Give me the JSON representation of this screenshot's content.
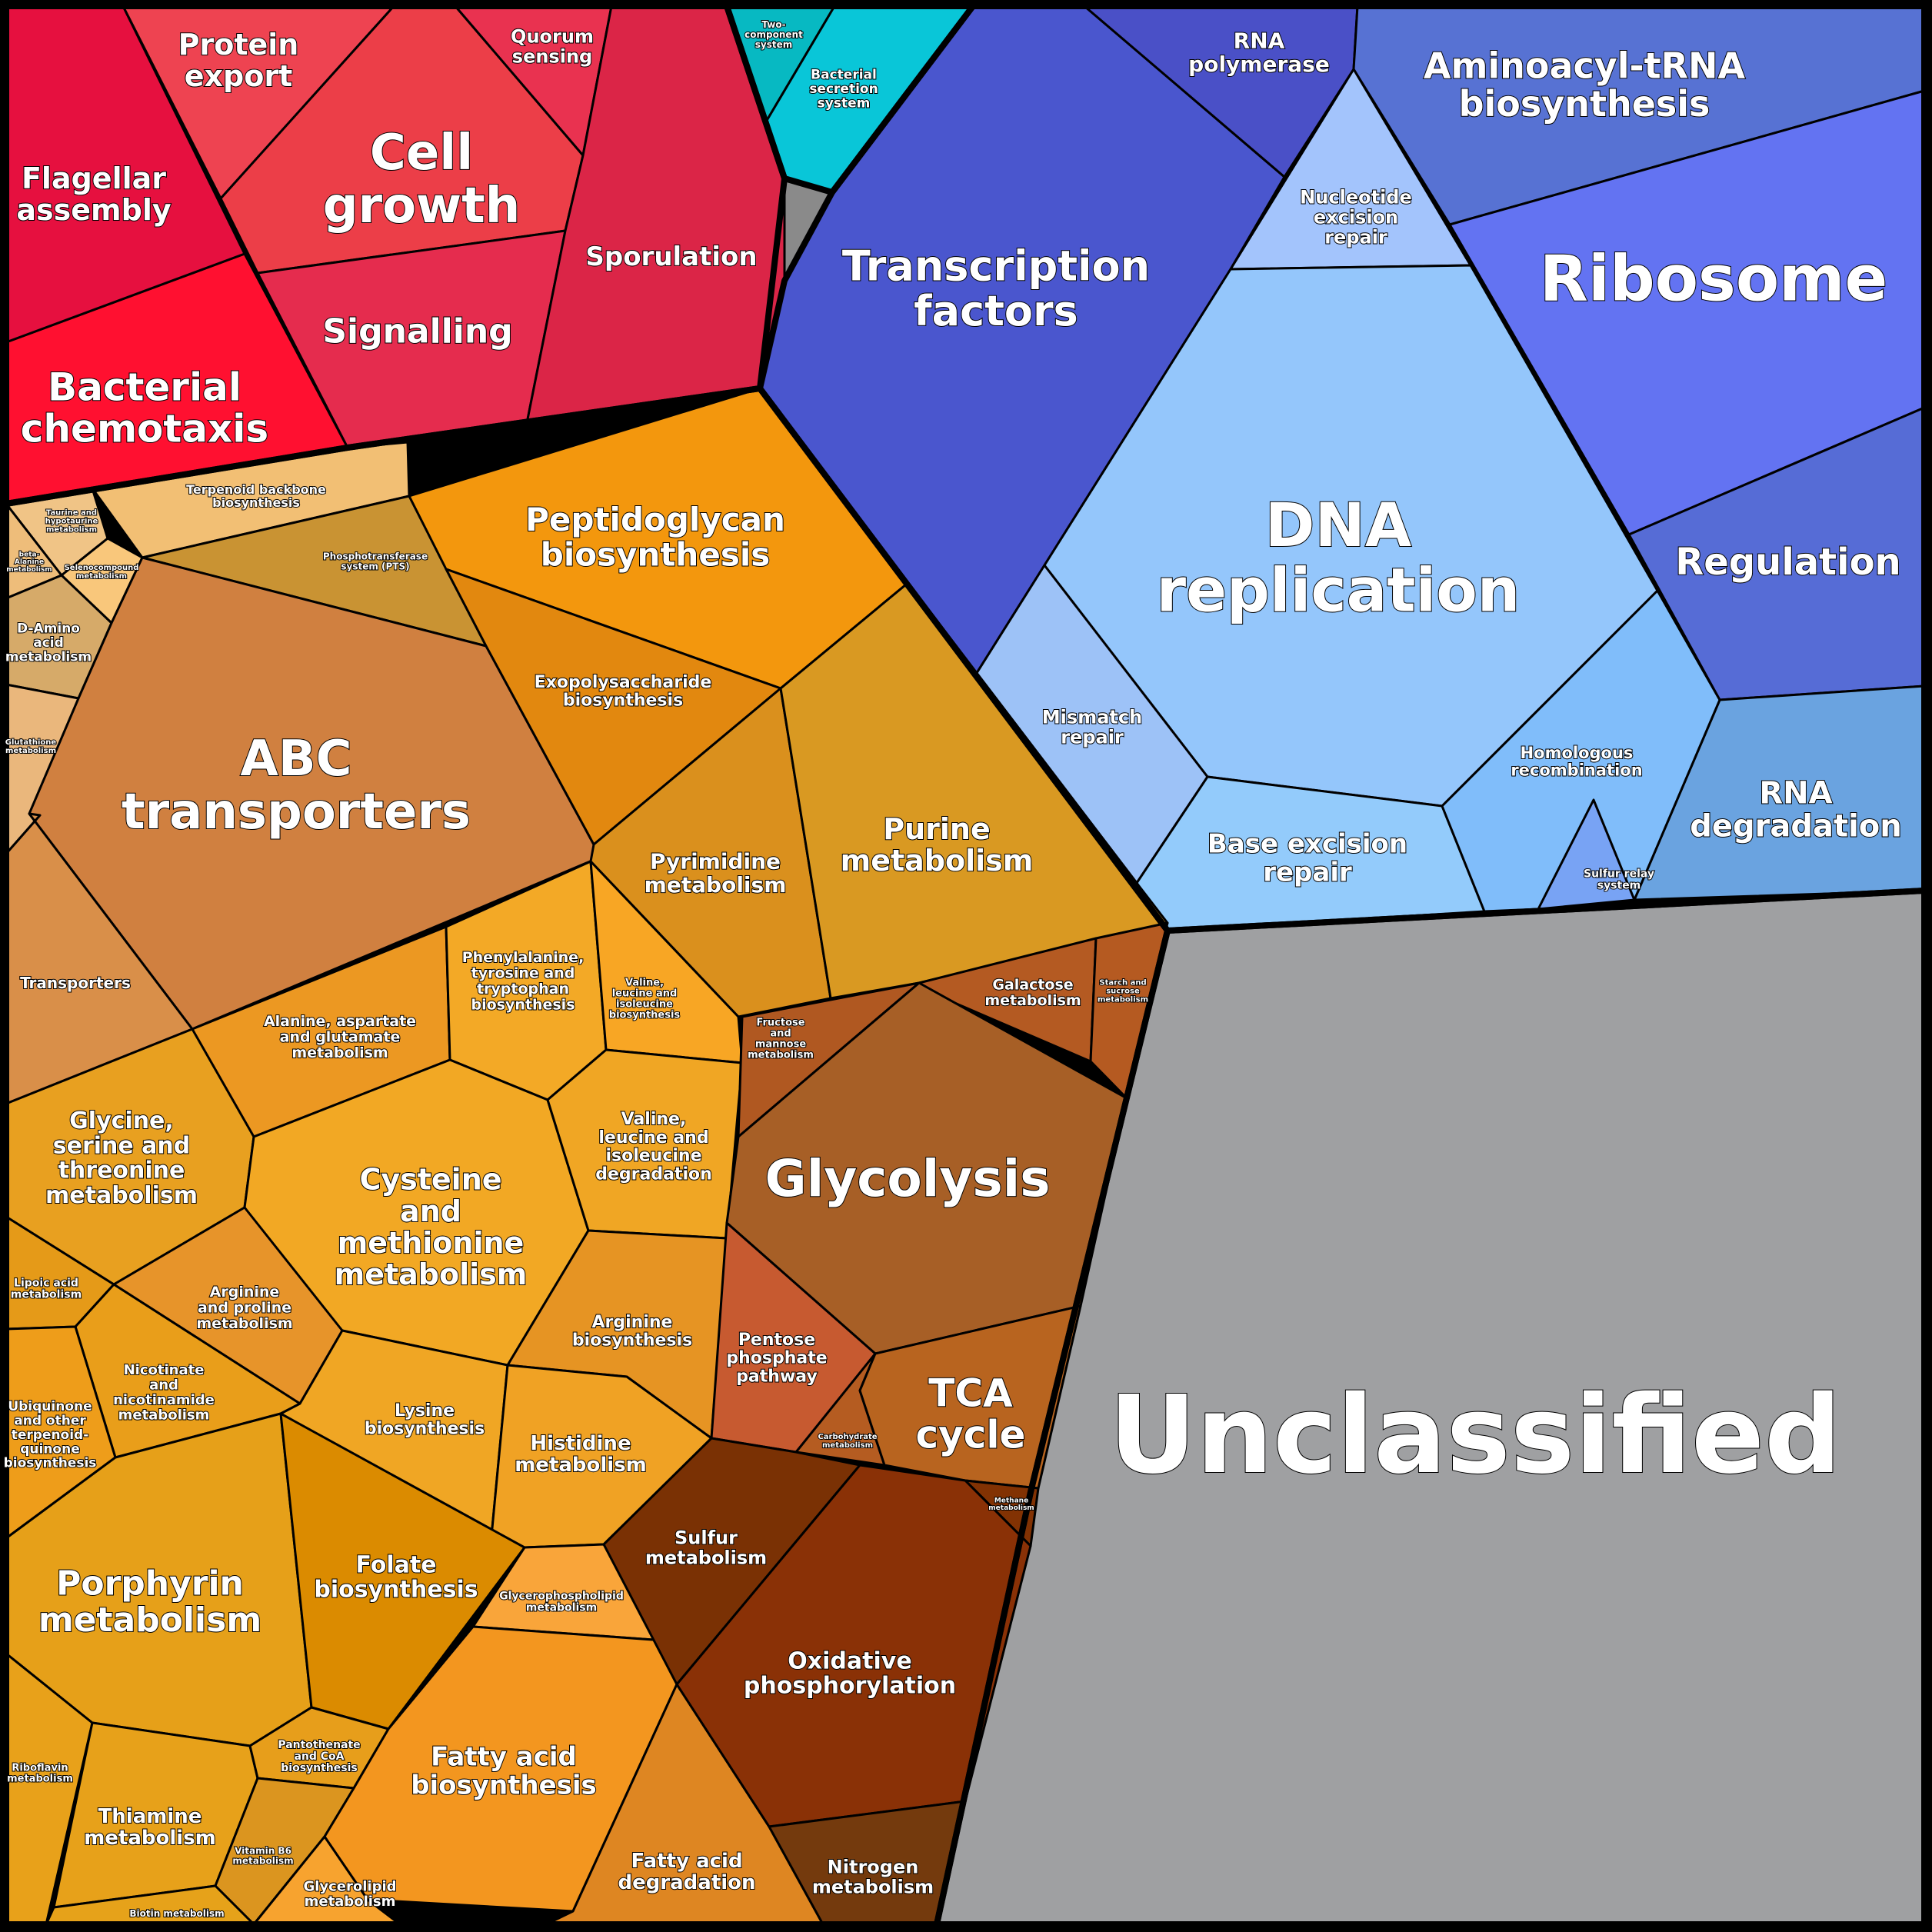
{
  "colors": {
    "gray": "#9fa0a2",
    "red": "#e6123e",
    "cyan": "#09c4d6",
    "blue": "#4a56ce",
    "lightblue": "#94c6fb",
    "orange": "#ef9e20",
    "brown": "#a45a22"
  },
  "cells": [
    {
      "id": "unclassified",
      "label": "Unclassified",
      "color": "#9fa0a2"
    },
    {
      "id": "bacterial-chemotaxis",
      "label": "Bacterial chemotaxis",
      "color": "#ff1030"
    },
    {
      "id": "flagellar-assembly",
      "label": "Flagellar assembly",
      "color": "#e6103f"
    },
    {
      "id": "protein-export",
      "label": "Protein export",
      "color": "#ee4351"
    },
    {
      "id": "cell-growth",
      "label": "Cell growth",
      "color": "#ec3e48"
    },
    {
      "id": "quorum-sensing",
      "label": "Quorum sensing",
      "color": "#e93250"
    },
    {
      "id": "signalling",
      "label": "Signalling",
      "color": "#e52c4e"
    },
    {
      "id": "sporulation",
      "label": "Sporulation",
      "color": "#db2547"
    },
    {
      "id": "two-component-system",
      "label": "Two-component system",
      "color": "#07b9c2"
    },
    {
      "id": "bacterial-secretion-system",
      "label": "Bacterial secretion system",
      "color": "#09c6d8"
    },
    {
      "id": "unnamed-gray-sliver",
      "label": "",
      "color": "#8a8a8a"
    },
    {
      "id": "transcription-factors",
      "label": "Transcription factors",
      "color": "#4a56ce"
    },
    {
      "id": "rna-polymerase",
      "label": "RNA polymerase",
      "color": "#4a50c7"
    },
    {
      "id": "aminoacyl-trna-biosynthesis",
      "label": "Aminoacyl-tRNA biosynthesis",
      "color": "#5772d3"
    },
    {
      "id": "ribosome",
      "label": "Ribosome",
      "color": "#6373f2"
    },
    {
      "id": "regulation",
      "label": "Regulation",
      "color": "#566cd6"
    },
    {
      "id": "rna-degradation",
      "label": "RNA degradation",
      "color": "#6aa3e0"
    },
    {
      "id": "nucleotide-excision-repair",
      "label": "Nucleotide excision repair",
      "color": "#a3c4fc"
    },
    {
      "id": "dna-replication",
      "label": "DNA replication",
      "color": "#94c6fb"
    },
    {
      "id": "mismatch-repair",
      "label": "Mismatch repair",
      "color": "#9dc2f7"
    },
    {
      "id": "base-excision-repair",
      "label": "Base excision repair",
      "color": "#93cbfb"
    },
    {
      "id": "homologous-recombination",
      "label": "Homologous recombination",
      "color": "#80bdfa"
    },
    {
      "id": "sulfur-relay-system",
      "label": "Sulfur relay system",
      "color": "#78a3f4"
    },
    {
      "id": "terpenoid-backbone-biosynthesis",
      "label": "Terpenoid backbone biosynthesis",
      "color": "#f2bf74"
    },
    {
      "id": "taurine-hypotaurine-metabolism",
      "label": "Taurine and hypotaurine metabolism",
      "color": "#f0c486"
    },
    {
      "id": "beta-alanine-metabolism",
      "label": "beta-Alanine metabolism",
      "color": "#eebd7a"
    },
    {
      "id": "selenocompound-metabolism",
      "label": "Selenocompound metabolism",
      "color": "#f9c77b"
    },
    {
      "id": "d-amino-acid-metabolism",
      "label": "D-Amino acid metabolism",
      "color": "#d6aa69"
    },
    {
      "id": "glutathione-metabolism",
      "label": "Glutathione metabolism",
      "color": "#eab77c"
    },
    {
      "id": "phosphotransferase-system",
      "label": "Phosphotransferase system (PTS)",
      "color": "#c99333"
    },
    {
      "id": "abc-transporters",
      "label": "ABC transporters",
      "color": "#d08040"
    },
    {
      "id": "transporters",
      "label": "Transporters",
      "color": "#d98f49"
    },
    {
      "id": "peptidoglycan-biosynthesis",
      "label": "Peptidoglycan biosynthesis",
      "color": "#f3970d"
    },
    {
      "id": "exopolysaccharide-biosynthesis",
      "label": "Exopolysaccharide biosynthesis",
      "color": "#e2880f"
    },
    {
      "id": "pyrimidine-metabolism",
      "label": "Pyrimidine metabolism",
      "color": "#da901d"
    },
    {
      "id": "purine-metabolism",
      "label": "Purine metabolism",
      "color": "#d99922"
    },
    {
      "id": "alanine-aspartate-glutamate-metabolism",
      "label": "Alanine, aspartate and glutamate metabolism",
      "color": "#ec9822"
    },
    {
      "id": "phenylalanine-tyrosine-tryptophan-biosynthesis",
      "label": "Phenylalanine, tyrosine and tryptophan biosynthesis",
      "color": "#f3a926"
    },
    {
      "id": "valine-leucine-isoleucine-biosynthesis",
      "label": "Valine, leucine and isoleucine biosynthesis",
      "color": "#f8a624"
    },
    {
      "id": "glycine-serine-threonine-metabolism",
      "label": "Glycine, serine and threonine metabolism",
      "color": "#e8a020"
    },
    {
      "id": "cysteine-methionine-metabolism",
      "label": "Cysteine and methionine metabolism",
      "color": "#f2a824"
    },
    {
      "id": "valine-leucine-isoleucine-degradation",
      "label": "Valine, leucine and isoleucine degradation",
      "color": "#f0a624"
    },
    {
      "id": "arginine-proline-metabolism",
      "label": "Arginine and proline metabolism",
      "color": "#e7942a"
    },
    {
      "id": "arginine-biosynthesis",
      "label": "Arginine biosynthesis",
      "color": "#e69423"
    },
    {
      "id": "lipoic-acid-metabolism",
      "label": "Lipoic acid metabolism",
      "color": "#e59a18"
    },
    {
      "id": "nicotinate-nicotinamide-metabolism",
      "label": "Nicotinate and nicotinamide metabolism",
      "color": "#e99e1a"
    },
    {
      "id": "lysine-biosynthesis",
      "label": "Lysine biosynthesis",
      "color": "#f0a624"
    },
    {
      "id": "histidine-metabolism",
      "label": "Histidine metabolism",
      "color": "#f0a224"
    },
    {
      "id": "ubiquinone-terpenoid-quinone-biosynthesis",
      "label": "Ubiquinone and other terpenoid-quinone biosynthesis",
      "color": "#ee9d1a"
    },
    {
      "id": "porphyrin-metabolism",
      "label": "Porphyrin metabolism",
      "color": "#e6a019"
    },
    {
      "id": "folate-biosynthesis",
      "label": "Folate biosynthesis",
      "color": "#db8b00"
    },
    {
      "id": "riboflavin-metabolism",
      "label": "Riboflavin metabolism",
      "color": "#e8a11a"
    },
    {
      "id": "thiamine-metabolism",
      "label": "Thiamine metabolism",
      "color": "#e7a11a"
    },
    {
      "id": "pantothenate-coa-biosynthesis",
      "label": "Pantothenate and CoA biosynthesis",
      "color": "#e79e1b"
    },
    {
      "id": "vitamin-b6-metabolism",
      "label": "Vitamin B6 metabolism",
      "color": "#db951f"
    },
    {
      "id": "biotin-metabolism",
      "label": "Biotin metabolism",
      "color": "#e6a21a"
    },
    {
      "id": "glycerophospholipid-metabolism",
      "label": "Glycerophospholipid metabolism",
      "color": "#f9a53a"
    },
    {
      "id": "fatty-acid-biosynthesis",
      "label": "Fatty acid biosynthesis",
      "color": "#f3961f"
    },
    {
      "id": "glycerolipid-metabolism",
      "label": "Glycerolipid metabolism",
      "color": "#f7a32f"
    },
    {
      "id": "fatty-acid-degradation",
      "label": "Fatty acid degradation",
      "color": "#de8622"
    },
    {
      "id": "fructose-mannose-metabolism",
      "label": "Fructose and mannose metabolism",
      "color": "#b05821"
    },
    {
      "id": "galactose-metabolism",
      "label": "Galactose metabolism",
      "color": "#b45a22"
    },
    {
      "id": "starch-sucrose-metabolism",
      "label": "Starch and sucrose metabolism",
      "color": "#b55a21"
    },
    {
      "id": "glycolysis",
      "label": "Glycolysis",
      "color": "#a75f26"
    },
    {
      "id": "pentose-phosphate-pathway",
      "label": "Pentose phosphate pathway",
      "color": "#c75a30"
    },
    {
      "id": "carbohydrate-metabolism",
      "label": "Carbohydrate metabolism",
      "color": "#b55c21"
    },
    {
      "id": "tca-cycle",
      "label": "TCA cycle",
      "color": "#b8641f"
    },
    {
      "id": "sulfur-metabolism",
      "label": "Sulfur metabolism",
      "color": "#7a3104"
    },
    {
      "id": "methane-metabolism",
      "label": "Methane metabolism",
      "color": "#823203"
    },
    {
      "id": "oxidative-phosphorylation",
      "label": "Oxidative phosphorylation",
      "color": "#8a3106"
    },
    {
      "id": "nitrogen-metabolism",
      "label": "Nitrogen metabolism",
      "color": "#743a0d"
    }
  ]
}
